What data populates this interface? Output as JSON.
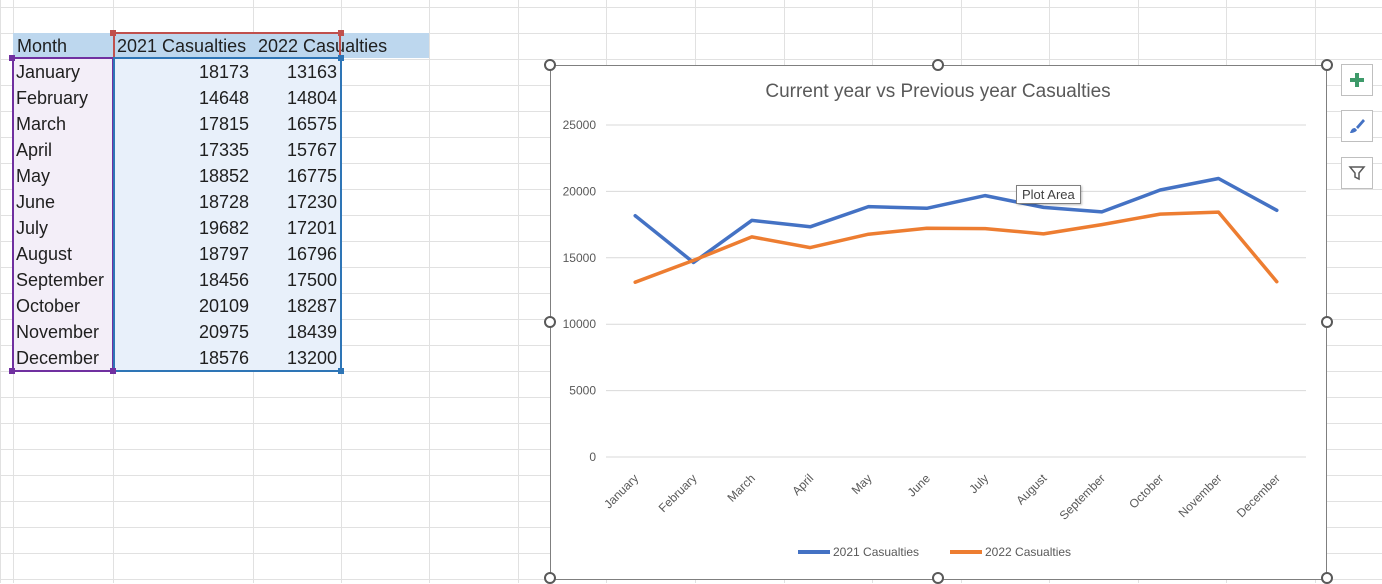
{
  "sheet": {
    "headers": [
      "Month",
      "2021 Casualties",
      "2022 Casualties"
    ],
    "rows": [
      [
        "January",
        "18173",
        "13163"
      ],
      [
        "February",
        "14648",
        "14804"
      ],
      [
        "March",
        "17815",
        "16575"
      ],
      [
        "April",
        "17335",
        "15767"
      ],
      [
        "May",
        "18852",
        "16775"
      ],
      [
        "June",
        "18728",
        "17230"
      ],
      [
        "July",
        "19682",
        "17201"
      ],
      [
        "August",
        "18797",
        "16796"
      ],
      [
        "September",
        "18456",
        "17500"
      ],
      [
        "October",
        "20109",
        "18287"
      ],
      [
        "November",
        "20975",
        "18439"
      ],
      [
        "December",
        "18576",
        "13200"
      ]
    ]
  },
  "chart_data": {
    "type": "line",
    "title": "Current year vs Previous year Casualties",
    "categories": [
      "January",
      "February",
      "March",
      "April",
      "May",
      "June",
      "July",
      "August",
      "September",
      "October",
      "November",
      "December"
    ],
    "series": [
      {
        "name": "2021 Casualties",
        "color": "#4472c4",
        "values": [
          18173,
          14648,
          17815,
          17335,
          18852,
          18728,
          19682,
          18797,
          18456,
          20109,
          20975,
          18576
        ]
      },
      {
        "name": "2022 Casualties",
        "color": "#ed7d31",
        "values": [
          13163,
          14804,
          16575,
          15767,
          16775,
          17230,
          17201,
          16796,
          17500,
          18287,
          18439,
          13200
        ]
      }
    ],
    "ylim": [
      0,
      25000
    ],
    "yticks": [
      "0",
      "5000",
      "10000",
      "15000",
      "20000",
      "25000"
    ],
    "grid": true,
    "legend_position": "bottom"
  },
  "tooltip": {
    "text": "Plot Area"
  },
  "chart_tools": {
    "add_icon": "plus-icon",
    "style_icon": "brush-icon",
    "filter_icon": "funnel-icon"
  }
}
